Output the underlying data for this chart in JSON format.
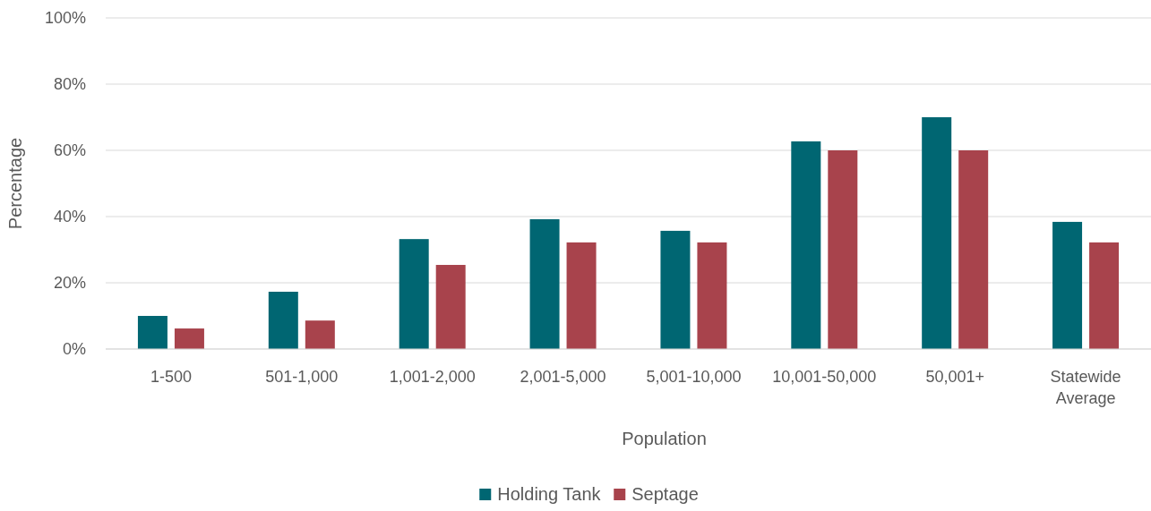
{
  "chart_data": {
    "type": "bar",
    "xlabel": "Population",
    "ylabel": "Percentage",
    "categories": [
      "1-500",
      "501-1,000",
      "1,001-2,000",
      "2,001-5,000",
      "5,001-10,000",
      "10,001-50,000",
      "50,001+",
      "Statewide Average"
    ],
    "series": [
      {
        "name": "Holding Tank",
        "color": "#006672",
        "values": [
          10,
          17.3,
          33.2,
          39.2,
          35.7,
          62.7,
          70,
          38.4
        ]
      },
      {
        "name": "Septage",
        "color": "#a8434c",
        "values": [
          6.2,
          8.6,
          25.4,
          32.2,
          32.2,
          60,
          60,
          32.2
        ]
      }
    ],
    "ylim": [
      0,
      100
    ],
    "yticks": [
      {
        "value": 0,
        "label": "0%"
      },
      {
        "value": 20,
        "label": "20%"
      },
      {
        "value": 40,
        "label": "40%"
      },
      {
        "value": 60,
        "label": "60%"
      },
      {
        "value": 80,
        "label": "80%"
      },
      {
        "value": 100,
        "label": "100%"
      }
    ],
    "grid": "y",
    "legend": "bottom"
  }
}
